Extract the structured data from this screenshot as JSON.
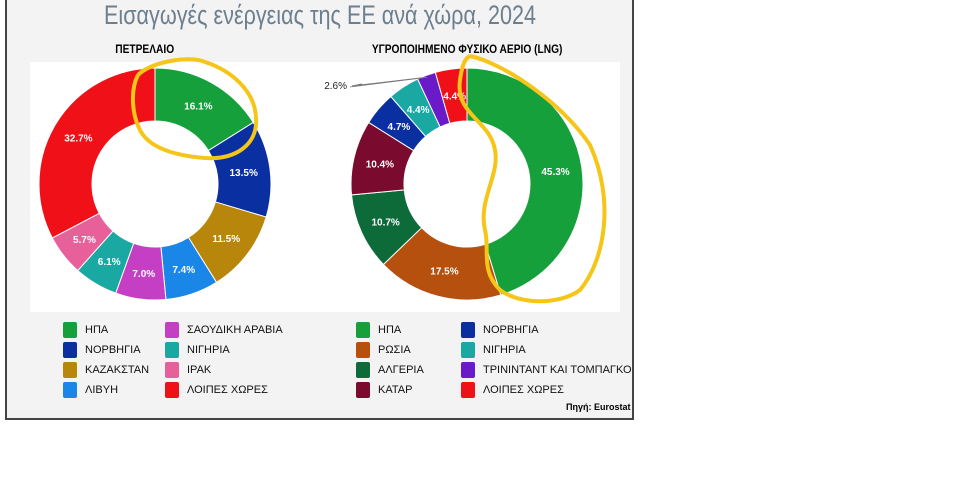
{
  "chart_data": [
    {
      "type": "pie",
      "subtitle": "ΠΕΤΡΕΛΑΙΟ",
      "unit": "%",
      "categories": [
        "ΗΠΑ",
        "ΝΟΡΒΗΓΙΑ",
        "ΚΑΖΑΚΣΤΑΝ",
        "ΛΙΒΥΗ",
        "ΣΑΟΥΔΙΚΗ ΑΡΑΒΙΑ",
        "ΝΙΓΗΡΙΑ",
        "ΙΡΑΚ",
        "ΛΟΙΠΕΣ ΧΩΡΕΣ"
      ],
      "values": [
        16.1,
        13.5,
        11.5,
        7.4,
        7.0,
        6.1,
        5.7,
        32.7
      ],
      "labels": [
        "16.1%",
        "13.5%",
        "11.5%",
        "7.4%",
        "7.0%",
        "6.1%",
        "5.7%",
        "32.7%"
      ],
      "colors": [
        "#16a03c",
        "#0a2fa0",
        "#b8860b",
        "#1a86e8",
        "#c43fc4",
        "#1aa8a3",
        "#e8609a",
        "#f01018"
      ]
    },
    {
      "type": "pie",
      "subtitle": "ΥΓΡΟΠΟΙΗΜΕΝΟ ΦΥΣΙΚΟ ΑΕΡΙΟ (LNG)",
      "unit": "%",
      "categories": [
        "ΗΠΑ",
        "ΡΩΣΙΑ",
        "ΑΛΓΕΡΙΑ",
        "ΚΑΤΑΡ",
        "ΝΟΡΒΗΓΙΑ",
        "ΝΙΓΗΡΙΑ",
        "ΤΡΙΝΙΝΤΑΝΤ ΚΑΙ ΤΟΜΠΑΓΚΟ",
        "ΛΟΙΠΕΣ ΧΩΡΕΣ"
      ],
      "values": [
        45.3,
        17.5,
        10.7,
        10.4,
        4.7,
        4.4,
        2.6,
        4.4
      ],
      "labels": [
        "45.3%",
        "17.5%",
        "10.7%",
        "10.4%",
        "4.7%",
        "4.4%",
        "2.6%",
        "4.4%"
      ],
      "colors": [
        "#16a03c",
        "#b5500e",
        "#0d6b3a",
        "#7a0a2e",
        "#0a2fa0",
        "#1aa8a3",
        "#6a1ac8",
        "#f01018"
      ]
    }
  ],
  "title": "Εισαγωγές ενέργειας της ΕΕ ανά χώρα, 2024",
  "legend1": [
    "ΗΠΑ",
    "ΝΟΡΒΗΓΙΑ",
    "ΚΑΖΑΚΣΤΑΝ",
    "ΛΙΒΥΗ",
    "ΣΑΟΥΔΙΚΗ ΑΡΑΒΙΑ",
    "ΝΙΓΗΡΙΑ",
    "ΙΡΑΚ",
    "ΛΟΙΠΕΣ ΧΩΡΕΣ"
  ],
  "legend2": [
    "ΗΠΑ",
    "ΡΩΣΙΑ",
    "ΑΛΓΕΡΙΑ",
    "ΚΑΤΑΡ",
    "ΝΟΡΒΗΓΙΑ",
    "ΝΙΓΗΡΙΑ",
    "ΤΡΙΝΙΝΤΑΝΤ ΚΑΙ ΤΟΜΠΑΓΚΟ",
    "ΛΟΙΠΕΣ ΧΩΡΕΣ"
  ],
  "source": "Πηγή: Eurostat"
}
